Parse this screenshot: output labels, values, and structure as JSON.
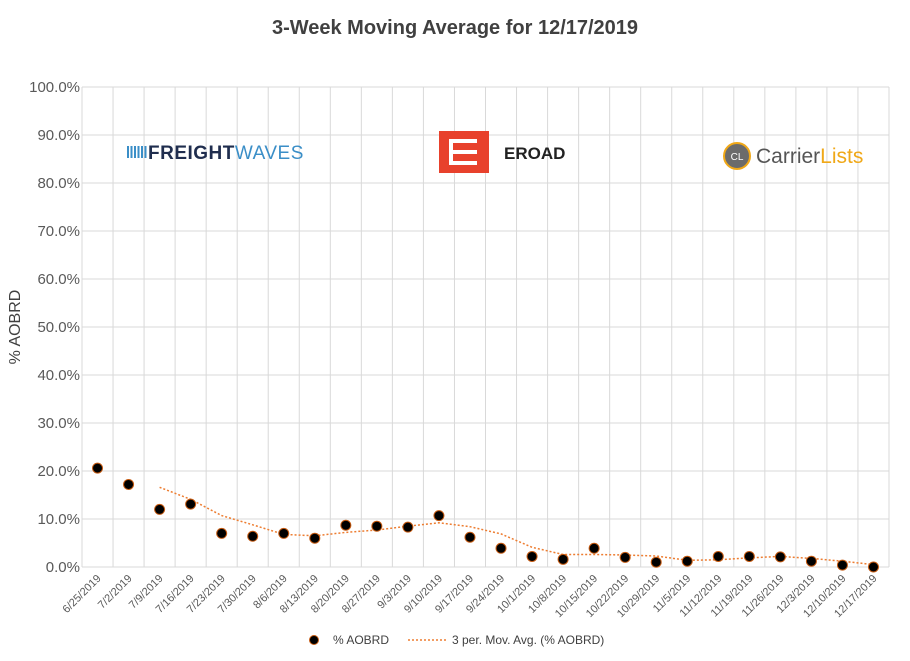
{
  "chart_data": {
    "type": "scatter",
    "title": "3-Week Moving Average for 12/17/2019",
    "xlabel": "",
    "ylabel": "% AOBRD",
    "ylim": [
      0,
      100
    ],
    "y_ticks": [
      "0.0%",
      "10.0%",
      "20.0%",
      "30.0%",
      "40.0%",
      "50.0%",
      "60.0%",
      "70.0%",
      "80.0%",
      "90.0%",
      "100.0%"
    ],
    "categories": [
      "6/25/2019",
      "7/2/2019",
      "7/9/2019",
      "7/16/2019",
      "7/23/2019",
      "7/30/2019",
      "8/6/2019",
      "8/13/2019",
      "8/20/2019",
      "8/27/2019",
      "9/3/2019",
      "9/10/2019",
      "9/17/2019",
      "9/24/2019",
      "10/1/2019",
      "10/8/2019",
      "10/15/2019",
      "10/22/2019",
      "10/29/2019",
      "11/5/2019",
      "11/12/2019",
      "11/19/2019",
      "11/26/2019",
      "12/3/2019",
      "12/10/2019",
      "12/17/2019"
    ],
    "series": [
      {
        "name": "% AOBRD",
        "style": "marker",
        "color": "#000000",
        "edge_color": "#c55a11",
        "values": [
          20.6,
          17.2,
          12.0,
          13.1,
          7.0,
          6.4,
          7.0,
          6.0,
          8.7,
          8.5,
          8.3,
          10.7,
          6.2,
          3.9,
          2.2,
          1.6,
          3.9,
          2.0,
          1.0,
          1.2,
          2.2,
          2.2,
          2.1,
          1.2,
          0.4,
          0.0
        ]
      },
      {
        "name": "3 per. Mov. Avg. (% AOBRD)",
        "style": "dotted-line",
        "color": "#ed7d31",
        "values": [
          null,
          null,
          16.6,
          14.1,
          10.7,
          8.8,
          6.8,
          6.5,
          7.2,
          7.7,
          8.5,
          9.2,
          8.4,
          6.9,
          4.1,
          2.6,
          2.6,
          2.5,
          2.3,
          1.4,
          1.5,
          1.9,
          2.2,
          1.8,
          1.2,
          0.5
        ]
      }
    ],
    "legend": {
      "placement": "bottom-center"
    },
    "grid": true
  },
  "logos": {
    "freightwaves": {
      "part1": "FREIGHT",
      "part2": "WAVES",
      "color1": "#1f2d4e",
      "color2": "#3a8ec7"
    },
    "eroad": {
      "text": "EROAD",
      "box_color": "#e8412c"
    },
    "carrierlists": {
      "badge": "CL",
      "part1": "Carrier",
      "part2": "Lists",
      "color1": "#555555",
      "color2": "#f0a818"
    }
  }
}
